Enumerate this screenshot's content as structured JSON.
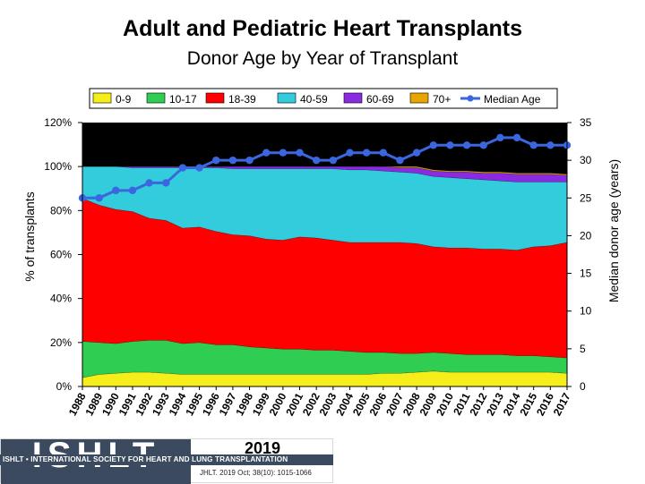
{
  "header": {
    "title": "Adult and Pediatric Heart Transplants",
    "subtitle": "Donor Age by Year of Transplant"
  },
  "footer": {
    "org": "ISHLT",
    "tagline": "ISHLT • INTERNATIONAL SOCIETY FOR HEART AND LUNG TRANSPLANTATION",
    "year": "2019",
    "citation": "JHLT. 2019 Oct; 38(10): 1015-1066"
  },
  "chart_data": {
    "type": "area",
    "subtype": "stacked-percent-with-line",
    "categories": [
      "1988",
      "1989",
      "1990",
      "1991",
      "1992",
      "1993",
      "1994",
      "1995",
      "1996",
      "1997",
      "1998",
      "1999",
      "2000",
      "2001",
      "2002",
      "2003",
      "2004",
      "2005",
      "2006",
      "2007",
      "2008",
      "2009",
      "2010",
      "2011",
      "2012",
      "2013",
      "2014",
      "2015",
      "2016",
      "2017"
    ],
    "series": [
      {
        "name": "0-9",
        "color": "#f5ee1a",
        "values": [
          4,
          5.5,
          6,
          6.5,
          6.5,
          6,
          5.5,
          5.5,
          5.5,
          5.5,
          5.5,
          5.5,
          5.5,
          5.5,
          5.5,
          5.5,
          5.5,
          5.5,
          6,
          6,
          6.5,
          7,
          6.5,
          6.5,
          6.5,
          6.5,
          6.5,
          6.5,
          6.5,
          6
        ]
      },
      {
        "name": "10-17",
        "color": "#2fce52",
        "values": [
          16.5,
          14.5,
          13.5,
          14,
          14.5,
          15,
          14,
          14.5,
          13.5,
          13.5,
          12.5,
          12,
          11.5,
          11.5,
          11,
          11,
          10.5,
          10,
          9.5,
          9,
          8.5,
          8.5,
          8.5,
          8,
          8,
          8,
          7.5,
          7.5,
          7,
          7
        ]
      },
      {
        "name": "18-39",
        "color": "#ff0000",
        "values": [
          65,
          62.5,
          61,
          59,
          55.5,
          54.5,
          52.5,
          52.5,
          51.5,
          50,
          50.5,
          49.5,
          49.5,
          51,
          51,
          50,
          49.5,
          50,
          50,
          50.5,
          50,
          48,
          48,
          48.5,
          48,
          48,
          48,
          49.5,
          50.5,
          52.5
        ]
      },
      {
        "name": "40-59",
        "color": "#33ccdd",
        "values": [
          14.5,
          17.5,
          19.5,
          20,
          23,
          24,
          27.5,
          27,
          29,
          30,
          30.5,
          32,
          32.5,
          31,
          31.5,
          32.5,
          33,
          33,
          32.5,
          32,
          32,
          32,
          32,
          31.5,
          31.5,
          31,
          31,
          29.5,
          29,
          27.5
        ]
      },
      {
        "name": "60-69",
        "color": "#8a2be2",
        "values": [
          0,
          0,
          0,
          0.5,
          0.5,
          0.5,
          0.5,
          0.5,
          0.5,
          1,
          1,
          1,
          1,
          1,
          1,
          1,
          1.5,
          1.5,
          2,
          2,
          2.5,
          2.5,
          2.5,
          3,
          3,
          3.5,
          3.5,
          3.5,
          3.5,
          3
        ]
      },
      {
        "name": "70+",
        "color": "#e6a500",
        "values": [
          0,
          0,
          0,
          0,
          0,
          0,
          0,
          0,
          0,
          0,
          0,
          0,
          0,
          0,
          0,
          0,
          0,
          0,
          0,
          0.5,
          0.5,
          0.5,
          0.5,
          0.5,
          0.5,
          0.5,
          0.5,
          0.5,
          0.5,
          0.5
        ]
      }
    ],
    "line_series": {
      "name": "Median Age",
      "color": "#3a66e0",
      "axis": "right",
      "values": [
        25,
        25,
        26,
        26,
        27,
        27,
        29,
        29,
        30,
        30,
        30,
        31,
        31,
        31,
        30,
        30,
        31,
        31,
        31,
        30,
        31,
        32,
        32,
        32,
        32,
        33,
        33,
        32,
        32,
        32
      ]
    },
    "background_color": "#000000",
    "ylabel": "% of transplants",
    "y2label": "Median donor age (years)",
    "ylim": [
      0,
      120
    ],
    "y2lim": [
      0,
      35
    ],
    "yticks": [
      "0%",
      "20%",
      "40%",
      "60%",
      "80%",
      "100%",
      "120%"
    ],
    "y2ticks": [
      "0",
      "5",
      "10",
      "15",
      "20",
      "25",
      "30",
      "35"
    ],
    "legend_position": "top"
  }
}
